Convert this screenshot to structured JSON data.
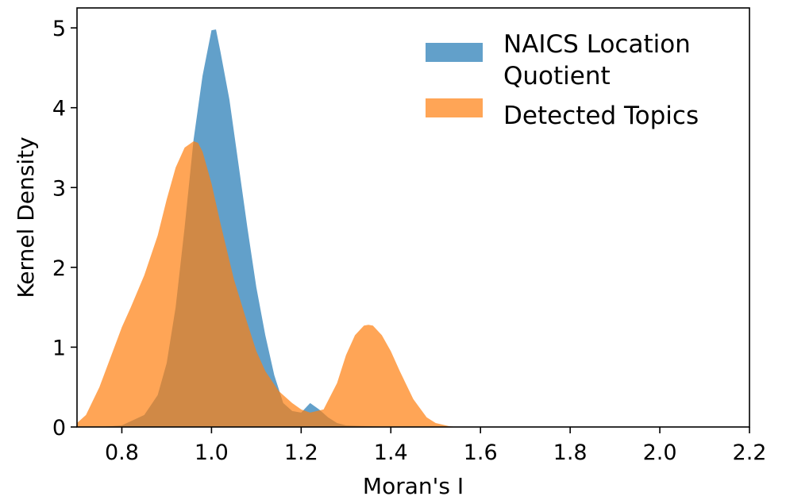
{
  "chart_data": {
    "type": "area",
    "title": "",
    "xlabel": "Moran's I",
    "ylabel": "Kernel Density",
    "xlim": [
      0.7,
      2.2
    ],
    "ylim": [
      0,
      5.25
    ],
    "xticks": [
      0.8,
      1.0,
      1.2,
      1.4,
      1.6,
      1.8,
      2.0,
      2.2
    ],
    "xtick_labels": [
      "0.8",
      "1.0",
      "1.2",
      "1.4",
      "1.6",
      "1.8",
      "2.0",
      "2.2"
    ],
    "yticks": [
      0,
      1,
      2,
      3,
      4,
      5
    ],
    "ytick_labels": [
      "0",
      "1",
      "2",
      "3",
      "4",
      "5"
    ],
    "grid": false,
    "legend_position": "top-right",
    "series": [
      {
        "name": "NAICS Location Quotient",
        "color": "#1f77b4",
        "opacity": 0.7,
        "x": [
          0.7,
          0.75,
          0.8,
          0.85,
          0.88,
          0.9,
          0.92,
          0.94,
          0.96,
          0.98,
          1.0,
          1.01,
          1.02,
          1.04,
          1.06,
          1.08,
          1.1,
          1.12,
          1.14,
          1.16,
          1.18,
          1.2,
          1.22,
          1.24,
          1.26,
          1.28,
          1.3,
          1.35,
          1.4,
          1.45,
          1.5
        ],
        "y": [
          0.0,
          0.0,
          0.02,
          0.15,
          0.4,
          0.8,
          1.5,
          2.5,
          3.6,
          4.4,
          4.97,
          4.98,
          4.7,
          4.1,
          3.3,
          2.5,
          1.75,
          1.15,
          0.65,
          0.3,
          0.2,
          0.18,
          0.3,
          0.22,
          0.12,
          0.05,
          0.02,
          0.01,
          0.0,
          0.0,
          0.0
        ]
      },
      {
        "name": "Detected Topics",
        "color": "#ff7f0e",
        "opacity": 0.7,
        "x": [
          0.7,
          0.72,
          0.75,
          0.78,
          0.8,
          0.82,
          0.85,
          0.88,
          0.9,
          0.92,
          0.94,
          0.96,
          0.97,
          0.98,
          1.0,
          1.02,
          1.05,
          1.08,
          1.1,
          1.12,
          1.15,
          1.18,
          1.2,
          1.22,
          1.25,
          1.28,
          1.3,
          1.32,
          1.34,
          1.35,
          1.36,
          1.38,
          1.4,
          1.42,
          1.45,
          1.48,
          1.5,
          1.53,
          1.55
        ],
        "y": [
          0.05,
          0.15,
          0.5,
          0.95,
          1.25,
          1.5,
          1.9,
          2.4,
          2.85,
          3.25,
          3.5,
          3.58,
          3.56,
          3.45,
          3.05,
          2.55,
          1.85,
          1.3,
          0.95,
          0.7,
          0.45,
          0.3,
          0.22,
          0.18,
          0.22,
          0.55,
          0.9,
          1.15,
          1.27,
          1.28,
          1.27,
          1.15,
          0.95,
          0.7,
          0.35,
          0.12,
          0.05,
          0.01,
          0.0
        ]
      }
    ]
  }
}
